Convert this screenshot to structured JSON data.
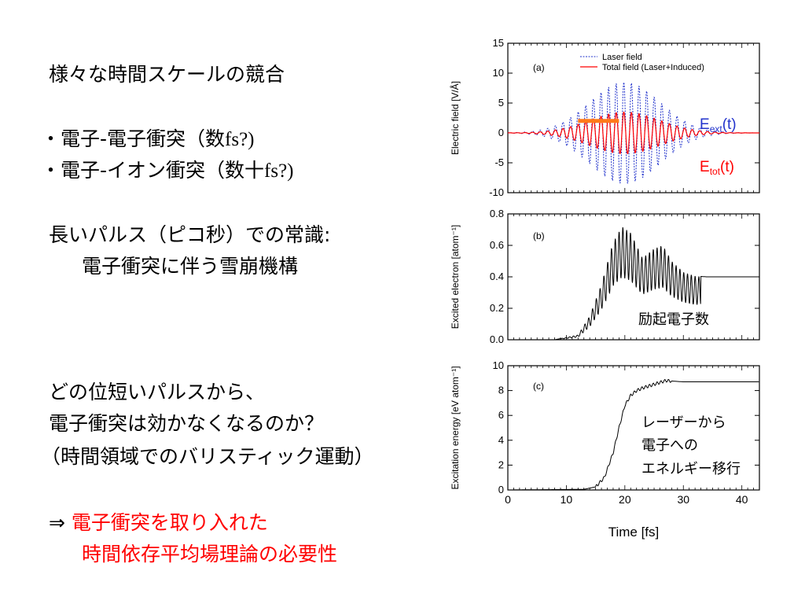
{
  "slide": {
    "line1": "様々な時間スケールの競合",
    "bullet1_main": "・電子-電子衝突（数",
    "bullet1_fs": "fs?)",
    "bullet2_main": "・電子-イオン衝突（数十",
    "bullet2_fs": "fs?)",
    "line4": "長いパルス（ピコ秒）での常識:",
    "line5": "電子衝突に伴う雪崩機構",
    "line6": "どの位短いパルスから、",
    "line7": "電子衝突は効かなくなるのか？",
    "line8": "（時間領域でのバリスティック運動）",
    "arrow": "⇒",
    "red1": "電子衝突を取り入れた",
    "red2": "時間依存平均場理論の必要性"
  },
  "chart_data": [
    {
      "type": "line",
      "panel_label": "(a)",
      "ylabel": "Electric field [V/Å]",
      "ylim": [
        -10,
        15
      ],
      "yticks": [
        -10,
        -5,
        0,
        5,
        10,
        15
      ],
      "xlim": [
        0,
        43
      ],
      "series": [
        {
          "name": "Laser field",
          "color": "#2233cc",
          "style": "dotted",
          "envelope": {
            "center": 20,
            "sigma": 6,
            "amplitude": 8.5,
            "period": 1.3
          }
        },
        {
          "name": "Total field (Laser+Induced)",
          "color": "#ff0000",
          "style": "solid",
          "envelope": {
            "center": 20,
            "sigma": 6,
            "amplitude": 3.5,
            "period": 1.3
          }
        }
      ],
      "annotation_bar": {
        "x": [
          12,
          19
        ],
        "y": 2,
        "color": "#ff7a1a"
      },
      "label_ext": {
        "main": "E",
        "sub": "ext",
        "tail": "(t)",
        "color": "#2233cc"
      },
      "label_tot": {
        "main": "E",
        "sub": "tot",
        "tail": "(t)",
        "color": "#ff0000"
      }
    },
    {
      "type": "line",
      "panel_label": "(b)",
      "ylabel": "Excited electron [atom⁻¹]",
      "ylim": [
        0,
        0.8
      ],
      "yticks": [
        "0.0",
        "0.2",
        "0.4",
        "0.6",
        "0.8"
      ],
      "xlim": [
        0,
        43
      ],
      "series": [
        {
          "name": "Excited electron",
          "color": "#000000",
          "points": [
            [
              8,
              0
            ],
            [
              12,
              0.03
            ],
            [
              14,
              0.15
            ],
            [
              16,
              0.35
            ],
            [
              18,
              0.62
            ],
            [
              19.5,
              0.72
            ],
            [
              21,
              0.68
            ],
            [
              23,
              0.52
            ],
            [
              25,
              0.58
            ],
            [
              26.5,
              0.6
            ],
            [
              28,
              0.5
            ],
            [
              30,
              0.43
            ],
            [
              32,
              0.405
            ],
            [
              34,
              0.4
            ],
            [
              43,
              0.4
            ]
          ]
        }
      ],
      "annotation": "励起電子数"
    },
    {
      "type": "line",
      "panel_label": "(c)",
      "ylabel": "Excitation energy [eV atom⁻¹]",
      "ylim": [
        0,
        10
      ],
      "yticks": [
        "0",
        "2",
        "4",
        "6",
        "8",
        "10"
      ],
      "xlim": [
        0,
        43
      ],
      "xlabel": "Time [fs]",
      "xticks": [
        "0",
        "10",
        "20",
        "30",
        "40"
      ],
      "series": [
        {
          "name": "Excitation energy",
          "color": "#000000",
          "points": [
            [
              0,
              0
            ],
            [
              13,
              0.05
            ],
            [
              15,
              0.25
            ],
            [
              16.5,
              1.0
            ],
            [
              18,
              3.0
            ],
            [
              19,
              5.0
            ],
            [
              20,
              6.8
            ],
            [
              21,
              7.6
            ],
            [
              22,
              8.0
            ],
            [
              23,
              8.2
            ],
            [
              25,
              8.5
            ],
            [
              27,
              8.8
            ],
            [
              30,
              8.7
            ],
            [
              43,
              8.7
            ]
          ]
        }
      ],
      "annotation": [
        "レーザーから",
        "電子への",
        "エネルギー移行"
      ]
    }
  ]
}
